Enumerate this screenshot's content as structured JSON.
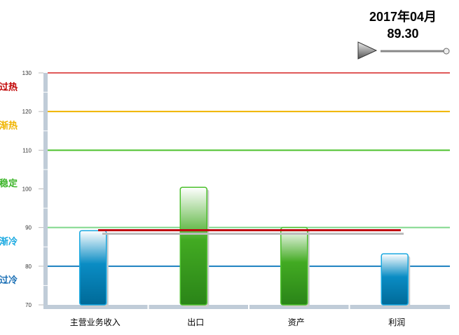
{
  "header": {
    "period": "2017年04月",
    "value": "89.30"
  },
  "player": {
    "play_icon": "play-triangle-icon",
    "slider_position_fraction": 1.0
  },
  "chart_data": {
    "type": "bar",
    "categories": [
      "主营业务收入",
      "出口",
      "资产",
      "利润"
    ],
    "values": [
      89.2,
      100.4,
      90.0,
      83.2
    ],
    "average_line": 89.3,
    "ylim": [
      70,
      130
    ],
    "yticks": [
      70,
      80,
      90,
      100,
      110,
      120,
      130
    ],
    "threshold_lines": [
      {
        "value": 130,
        "color": "#e05a5a"
      },
      {
        "value": 120,
        "color": "#f0b400"
      },
      {
        "value": 110,
        "color": "#4cc02c"
      },
      {
        "value": 90,
        "color": "#7fd88a"
      },
      {
        "value": 80,
        "color": "#1a7fc0"
      }
    ],
    "zones": [
      {
        "label": "过热",
        "value": 126.5,
        "color": "#c00000"
      },
      {
        "label": "渐热",
        "value": 116.5,
        "color": "#f0b400"
      },
      {
        "label": "稳定",
        "value": 101.5,
        "color": "#3db52a"
      },
      {
        "label": "渐冷",
        "value": 86.5,
        "color": "#18a8e0"
      },
      {
        "label": "过冷",
        "value": 76.5,
        "color": "#1a6fb5"
      }
    ],
    "colors": {
      "cold_bar": "#0078a8",
      "stable_bar": "#2f9a1a",
      "average_line": "#c00010",
      "axis": "#c0ccd8"
    }
  }
}
